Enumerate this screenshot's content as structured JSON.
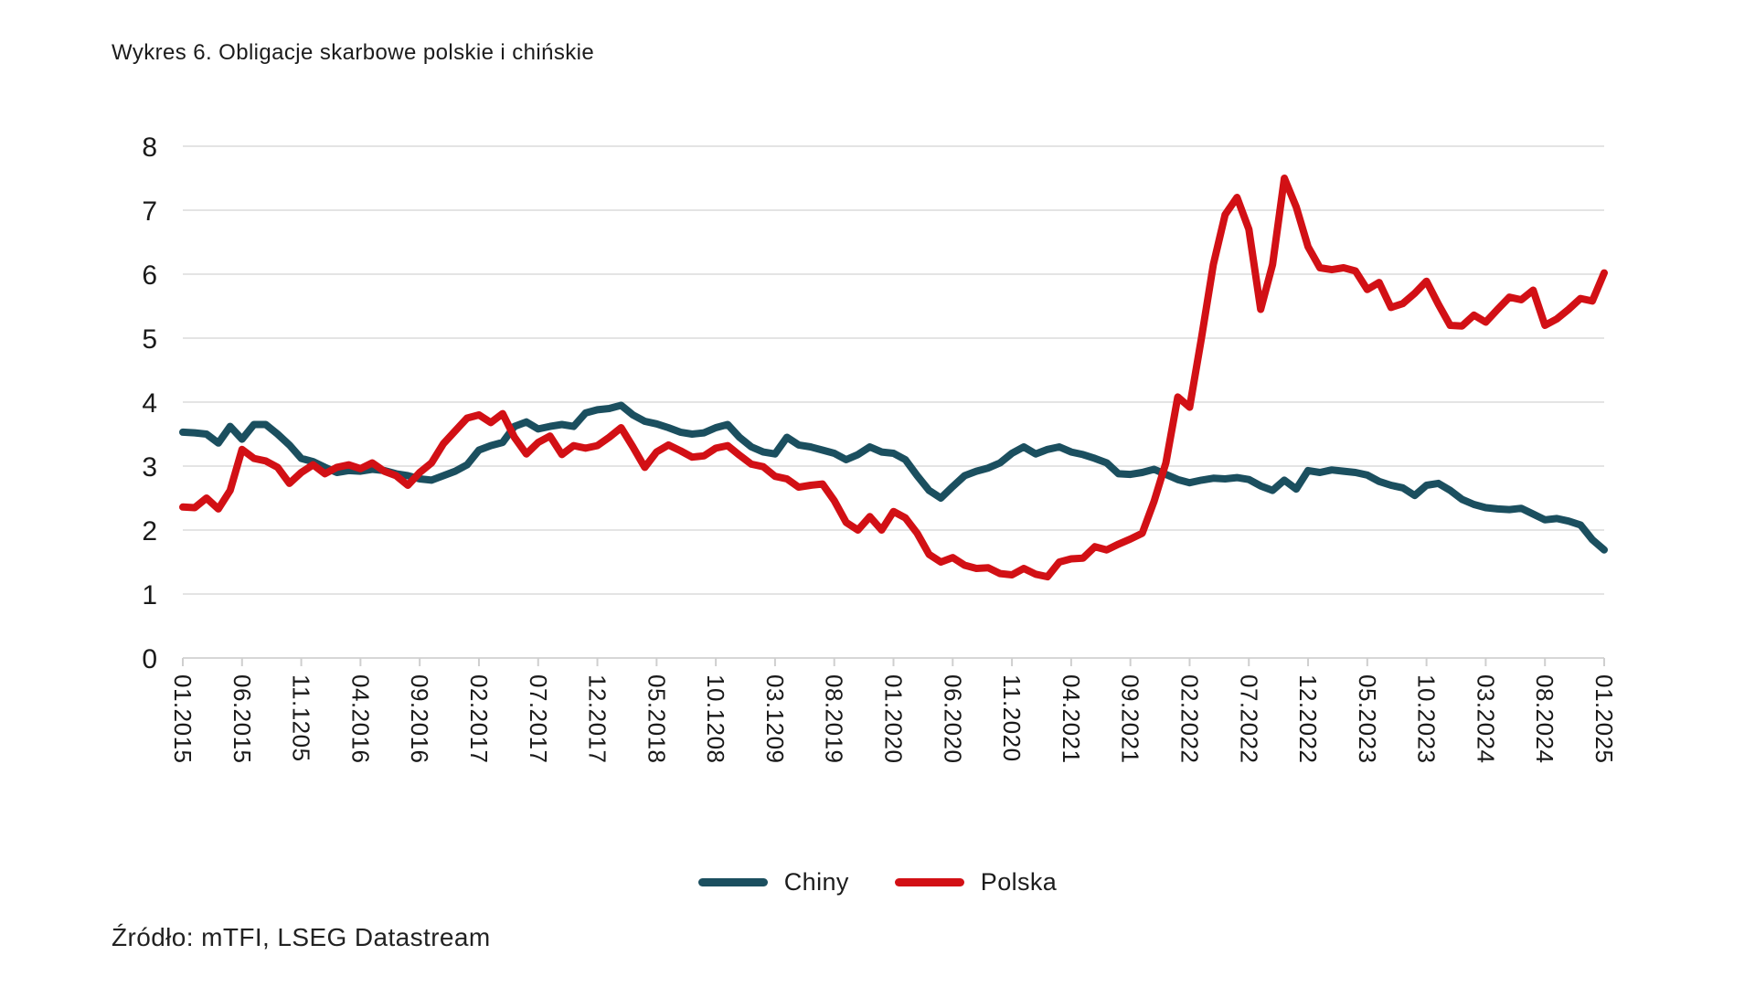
{
  "title": "Wykres 6. Obligacje skarbowe polskie i chińskie",
  "source": "Źródło: mTFI, LSEG Datastream",
  "colors": {
    "chiny": "#1b4f5f",
    "polska": "#d21015",
    "gridline": "#e4e4e4",
    "axis_line": "#d6d6d6",
    "tick": "#cfcfcf",
    "text": "#1a1a1a"
  },
  "legend": [
    {
      "label": "Chiny",
      "color": "#1b4f5f"
    },
    {
      "label": "Polska",
      "color": "#d21015"
    }
  ],
  "chart_data": {
    "type": "line",
    "title": "Wykres 6. Obligacje skarbowe polskie i chińskie",
    "xlabel": "",
    "ylabel": "",
    "ylim": [
      0,
      8
    ],
    "y_ticks": [
      0,
      1,
      2,
      3,
      4,
      5,
      6,
      7,
      8
    ],
    "grid": "horizontal",
    "legend_position": "bottom",
    "x_interval": "monthly",
    "x_start": "01.2015",
    "x_end": "01.2025",
    "x_tick_every_n_months": 5,
    "x_tick_labels": [
      "01.2015",
      "06.2015",
      "11.1205",
      "04.2016",
      "09.2016",
      "02.2017",
      "07.2017",
      "12.2017",
      "05.2018",
      "10.1208",
      "03.1209",
      "08.2019",
      "01.2020",
      "06.2020",
      "11.2020",
      "04.2021",
      "09.2021",
      "02.2022",
      "07.2022",
      "12.2022",
      "05.2023",
      "10.2023",
      "03.2024",
      "08.2024",
      "01.2025"
    ],
    "series": [
      {
        "name": "Chiny",
        "color": "#1b4f5f",
        "values": [
          3.53,
          3.52,
          3.5,
          3.36,
          3.62,
          3.42,
          3.65,
          3.65,
          3.5,
          3.33,
          3.12,
          3.07,
          2.98,
          2.9,
          2.93,
          2.92,
          2.95,
          2.93,
          2.88,
          2.85,
          2.8,
          2.78,
          2.85,
          2.92,
          3.02,
          3.25,
          3.32,
          3.37,
          3.62,
          3.69,
          3.58,
          3.62,
          3.65,
          3.62,
          3.83,
          3.88,
          3.9,
          3.95,
          3.8,
          3.7,
          3.66,
          3.6,
          3.53,
          3.5,
          3.52,
          3.6,
          3.65,
          3.45,
          3.3,
          3.22,
          3.19,
          3.45,
          3.33,
          3.3,
          3.25,
          3.2,
          3.1,
          3.18,
          3.3,
          3.22,
          3.2,
          3.1,
          2.85,
          2.62,
          2.5,
          2.68,
          2.85,
          2.92,
          2.97,
          3.05,
          3.2,
          3.3,
          3.19,
          3.26,
          3.3,
          3.22,
          3.18,
          3.12,
          3.05,
          2.88,
          2.87,
          2.9,
          2.95,
          2.87,
          2.79,
          2.74,
          2.78,
          2.81,
          2.8,
          2.82,
          2.79,
          2.69,
          2.62,
          2.78,
          2.64,
          2.93,
          2.9,
          2.94,
          2.92,
          2.9,
          2.86,
          2.76,
          2.7,
          2.66,
          2.54,
          2.7,
          2.73,
          2.62,
          2.48,
          2.4,
          2.35,
          2.33,
          2.32,
          2.34,
          2.25,
          2.16,
          2.18,
          2.14,
          2.08,
          1.85,
          1.69
        ]
      },
      {
        "name": "Polska",
        "color": "#d21015",
        "values": [
          2.36,
          2.35,
          2.5,
          2.33,
          2.62,
          3.26,
          3.12,
          3.08,
          2.98,
          2.73,
          2.9,
          3.02,
          2.88,
          2.98,
          3.02,
          2.96,
          3.05,
          2.92,
          2.85,
          2.7,
          2.9,
          3.05,
          3.35,
          3.55,
          3.75,
          3.8,
          3.68,
          3.82,
          3.45,
          3.19,
          3.37,
          3.47,
          3.18,
          3.32,
          3.28,
          3.32,
          3.45,
          3.6,
          3.3,
          2.98,
          3.22,
          3.33,
          3.24,
          3.14,
          3.16,
          3.28,
          3.32,
          3.17,
          3.03,
          2.99,
          2.84,
          2.8,
          2.67,
          2.7,
          2.72,
          2.46,
          2.12,
          2.0,
          2.21,
          2.0,
          2.29,
          2.19,
          1.95,
          1.62,
          1.5,
          1.57,
          1.45,
          1.4,
          1.41,
          1.32,
          1.3,
          1.4,
          1.31,
          1.27,
          1.5,
          1.55,
          1.56,
          1.74,
          1.69,
          1.78,
          1.86,
          1.95,
          2.45,
          3.05,
          4.08,
          3.92,
          5.0,
          6.15,
          6.93,
          7.2,
          6.7,
          5.45,
          6.15,
          7.5,
          7.05,
          6.43,
          6.1,
          6.07,
          6.1,
          6.05,
          5.76,
          5.87,
          5.48,
          5.54,
          5.7,
          5.89,
          5.53,
          5.2,
          5.19,
          5.36,
          5.25,
          5.45,
          5.64,
          5.6,
          5.75,
          5.2,
          5.3,
          5.45,
          5.62,
          5.58,
          6.02
        ]
      }
    ]
  }
}
